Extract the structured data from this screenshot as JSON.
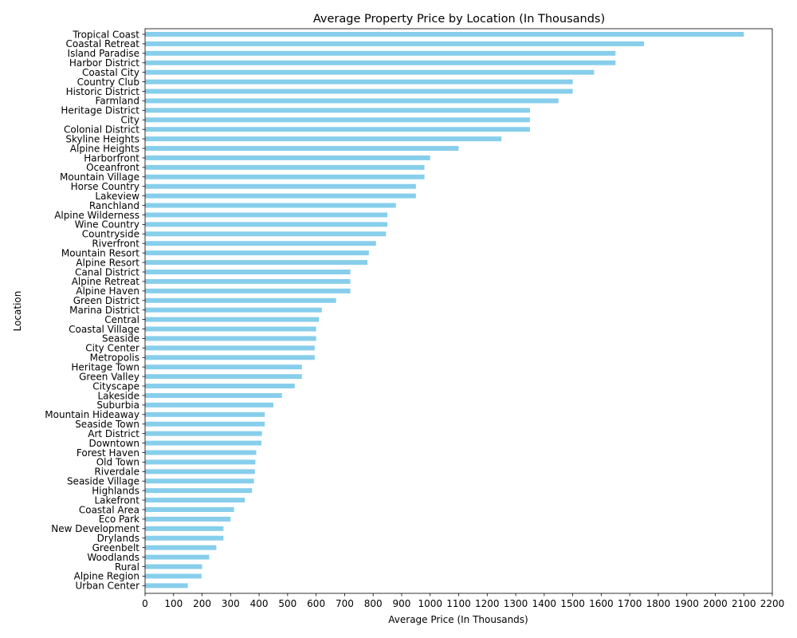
{
  "chart_data": {
    "type": "bar",
    "orientation": "horizontal",
    "title": "Average Property Price by Location (In Thousands)",
    "xlabel": "Average Price (In Thousands)",
    "ylabel": "Location",
    "xlim": [
      0,
      2200
    ],
    "xticks": [
      0,
      100,
      200,
      300,
      400,
      500,
      600,
      700,
      800,
      900,
      1000,
      1100,
      1200,
      1300,
      1400,
      1500,
      1600,
      1700,
      1800,
      1900,
      2000,
      2100,
      2200
    ],
    "bar_color": "#87ceeb",
    "grid": false,
    "categories": [
      "Tropical Coast",
      "Coastal Retreat",
      "Island Paradise",
      "Harbor District",
      "Coastal City",
      "Country Club",
      "Historic District",
      "Farmland",
      "Heritage District",
      "City",
      "Colonial District",
      "Skyline Heights",
      "Alpine Heights",
      "Harborfront",
      "Oceanfront",
      "Mountain Village",
      "Horse Country",
      "Lakeview",
      "Ranchland",
      "Alpine Wilderness",
      "Wine Country",
      "Countryside",
      "Riverfront",
      "Mountain Resort",
      "Alpine Resort",
      "Canal District",
      "Alpine Retreat",
      "Alpine Haven",
      "Green District",
      "Marina District",
      "Central",
      "Coastal Village",
      "Seaside",
      "City Center",
      "Metropolis",
      "Heritage Town",
      "Green Valley",
      "Cityscape",
      "Lakeside",
      "Suburbia",
      "Mountain Hideaway",
      "Seaside Town",
      "Art District",
      "Downtown",
      "Forest Haven",
      "Old Town",
      "Riverdale",
      "Seaside Village",
      "Highlands",
      "Lakefront",
      "Coastal Area",
      "Eco Park",
      "New Development",
      "Drylands",
      "Greenbelt",
      "Woodlands",
      "Rural",
      "Alpine Region",
      "Urban Center"
    ],
    "values": [
      2100,
      1750,
      1650,
      1650,
      1575,
      1500,
      1500,
      1450,
      1350,
      1350,
      1350,
      1250,
      1100,
      1000,
      980,
      980,
      950,
      950,
      880,
      850,
      850,
      845,
      810,
      785,
      780,
      720,
      720,
      720,
      670,
      620,
      610,
      600,
      600,
      595,
      595,
      550,
      550,
      525,
      480,
      450,
      420,
      420,
      410,
      408,
      390,
      387,
      385,
      382,
      375,
      350,
      312,
      300,
      275,
      275,
      250,
      225,
      200,
      198,
      150
    ]
  }
}
